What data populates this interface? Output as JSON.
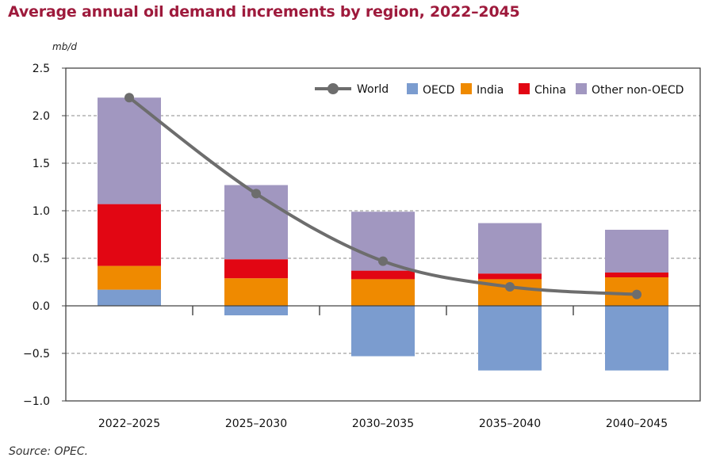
{
  "chart_data": {
    "type": "bar",
    "stacked": true,
    "title": "Average annual oil demand increments by region, 2022–2045",
    "ylabel": "mb/d",
    "source": "Source: OPEC.",
    "categories": [
      "2022–2025",
      "2025–2030",
      "2030–2035",
      "2035–2040",
      "2040–2045"
    ],
    "ylim": [
      -1.0,
      2.5
    ],
    "yticks": [
      "2.5",
      "2.0",
      "1.5",
      "1.0",
      "0.5",
      "0.0",
      "−0.5",
      "−1.0"
    ],
    "grid": "horizontal dashed",
    "legend": "top-right",
    "series": [
      {
        "name": "OECD",
        "color": "#7b9ccf",
        "values": [
          0.17,
          -0.1,
          -0.53,
          -0.68,
          -0.68
        ]
      },
      {
        "name": "India",
        "color": "#ef8a00",
        "values": [
          0.25,
          0.29,
          0.28,
          0.28,
          0.3
        ]
      },
      {
        "name": "China",
        "color": "#e20613",
        "values": [
          0.65,
          0.2,
          0.09,
          0.06,
          0.05
        ]
      },
      {
        "name": "Other non-OECD",
        "color": "#a197c0",
        "values": [
          1.12,
          0.78,
          0.62,
          0.53,
          0.45
        ]
      }
    ],
    "line": {
      "name": "World",
      "color": "#6d6d6d",
      "values": [
        2.19,
        1.18,
        0.47,
        0.2,
        0.12
      ]
    }
  }
}
